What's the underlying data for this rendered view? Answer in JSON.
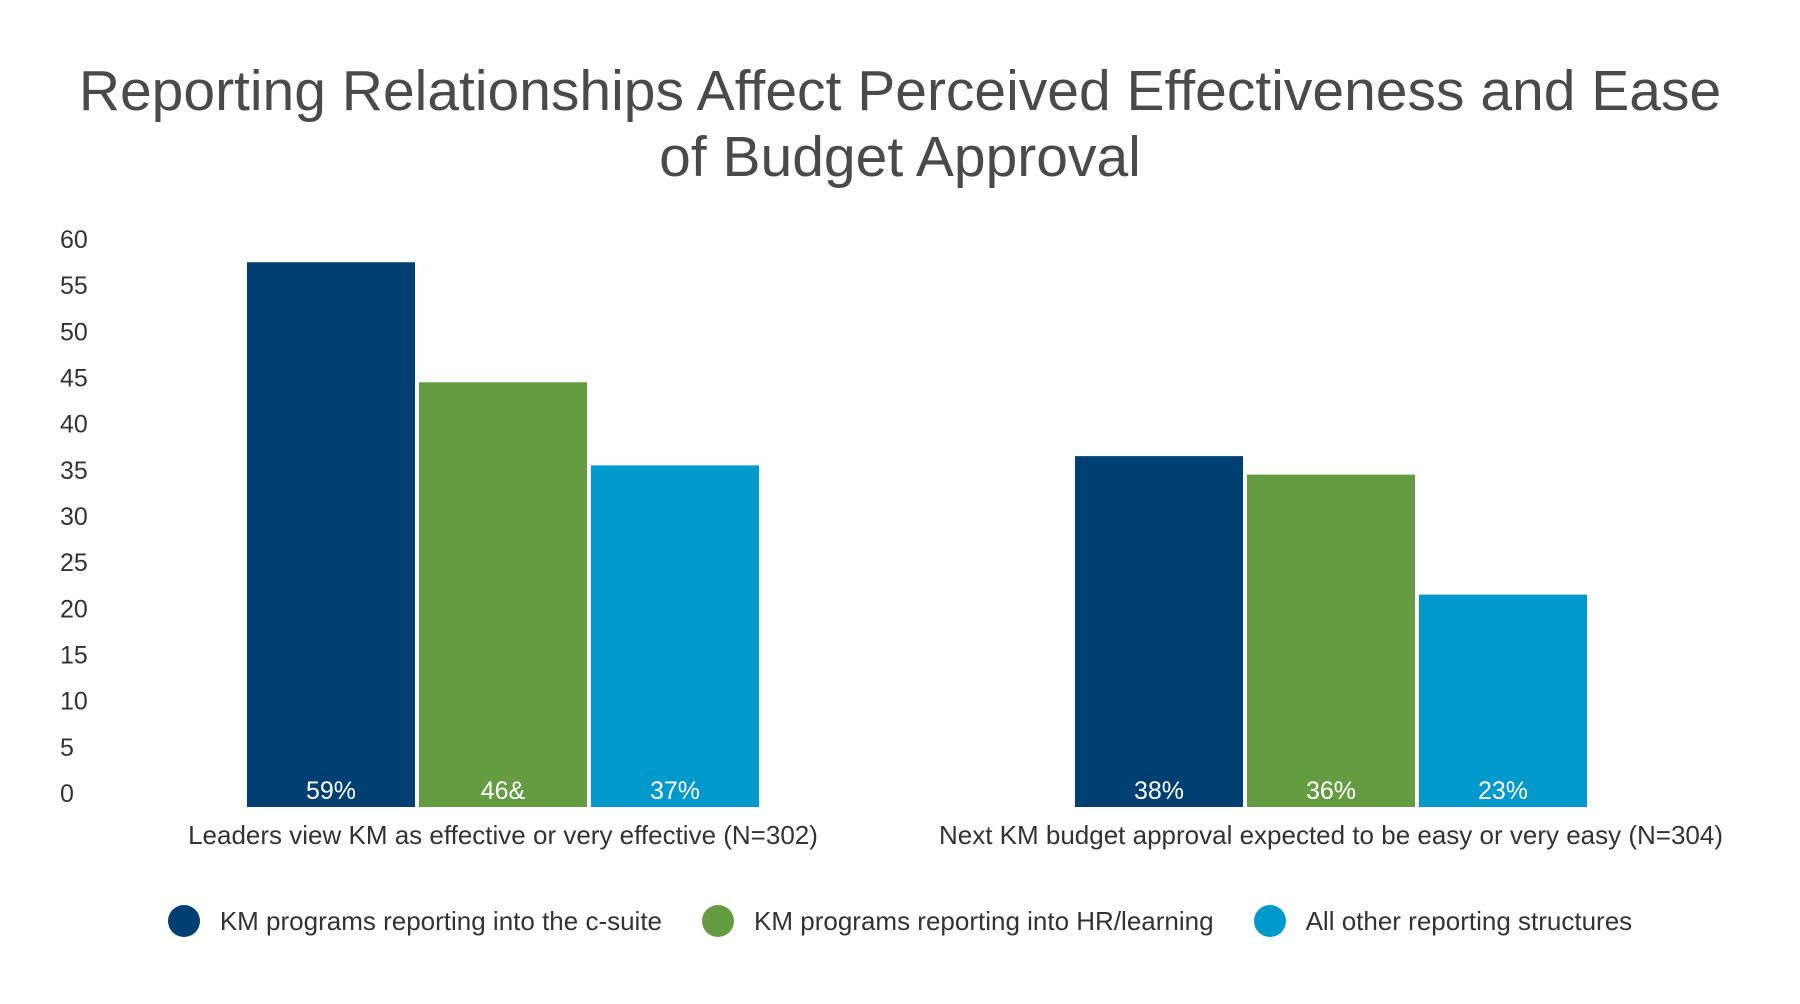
{
  "chart_data": {
    "type": "bar",
    "title": "Reporting Relationships Affect Perceived Effectiveness and Ease of Budget Approval",
    "categories": [
      "Leaders view KM as effective or very effective (N=302)",
      "Next KM budget approval expected to be easy or very easy (N=304)"
    ],
    "series": [
      {
        "name": "KM programs reporting into the c-suite",
        "color": "#003f72",
        "values": [
          59,
          38
        ],
        "labels": [
          "59%",
          "38%"
        ]
      },
      {
        "name": "KM programs reporting into HR/learning",
        "color": "#659b41",
        "values": [
          46,
          36
        ],
        "labels": [
          "46&",
          "36%"
        ]
      },
      {
        "name": "All other reporting structures",
        "color": "#0099cc",
        "values": [
          37,
          23
        ],
        "labels": [
          "37%",
          "23%"
        ]
      }
    ],
    "y_ticks": [
      "0",
      "5",
      "10",
      "15",
      "20",
      "25",
      "30",
      "35",
      "40",
      "45",
      "50",
      "55",
      "60"
    ],
    "ylim": [
      0,
      60
    ],
    "grid": false,
    "legend_position": "bottom"
  }
}
